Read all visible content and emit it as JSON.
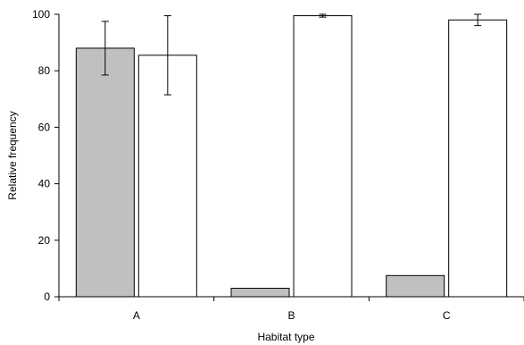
{
  "chart_data": {
    "type": "bar",
    "categories": [
      "A",
      "B",
      "C"
    ],
    "series": [
      {
        "values": [
          88,
          3,
          7.5
        ],
        "errors": [
          9.5,
          null,
          null
        ],
        "color": "#c0c0c0"
      },
      {
        "values": [
          85.5,
          99.5,
          98
        ],
        "errors": [
          14,
          0.5,
          2
        ],
        "color": "#ffffff"
      }
    ],
    "xlabel": "Habitat type",
    "ylabel": "Relative frequency",
    "ylim": [
      0,
      100
    ],
    "yticks": [
      0,
      20,
      40,
      60,
      80,
      100
    ],
    "grid": false,
    "legend": "none"
  }
}
